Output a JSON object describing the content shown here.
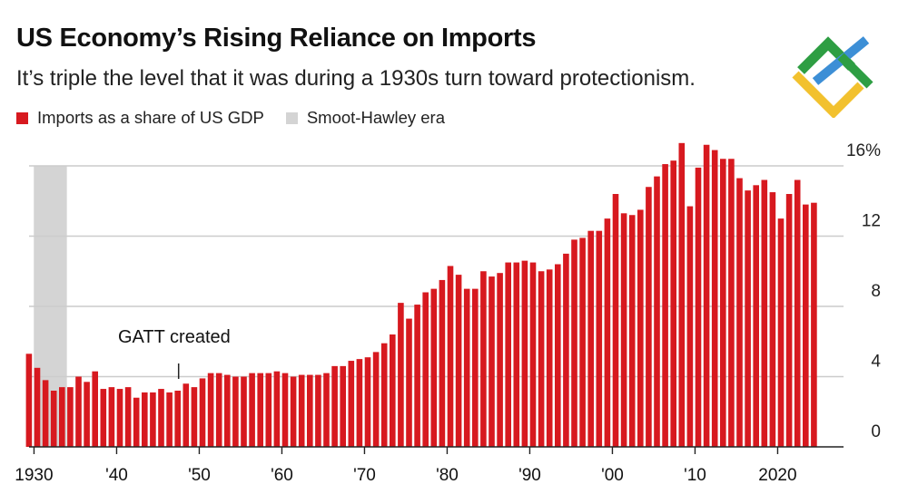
{
  "header": {
    "title": "US Economy’s Rising Reliance on Imports",
    "subtitle": "It’s triple the level that it was during a 1930s turn toward protectionism."
  },
  "legend": [
    {
      "label": "Imports as a share of US GDP",
      "color": "#d7191f"
    },
    {
      "label": "Smoot-Hawley era",
      "color": "#d4d4d4"
    }
  ],
  "colors": {
    "bar": "#d7191f",
    "shade": "#d4d4d4",
    "grid": "#cccccc",
    "axis": "#222222"
  },
  "logo": {
    "name": "brand-logo-icon"
  },
  "chart_data": {
    "type": "bar",
    "title": "US Economy’s Rising Reliance on Imports",
    "ylabel": "Imports as a share of US GDP (%)",
    "ylim": [
      0,
      16
    ],
    "yticks": [
      {
        "value": 0,
        "label": "0"
      },
      {
        "value": 4,
        "label": "4"
      },
      {
        "value": 8,
        "label": "8"
      },
      {
        "value": 12,
        "label": "12"
      },
      {
        "value": 16,
        "label": "16%"
      }
    ],
    "xticks": [
      {
        "year": 1930,
        "label": "1930"
      },
      {
        "year": 1940,
        "label": "'40"
      },
      {
        "year": 1950,
        "label": "'50"
      },
      {
        "year": 1960,
        "label": "'60"
      },
      {
        "year": 1970,
        "label": "'70"
      },
      {
        "year": 1980,
        "label": "'80"
      },
      {
        "year": 1990,
        "label": "'90"
      },
      {
        "year": 2000,
        "label": "'00"
      },
      {
        "year": 2010,
        "label": "'10"
      },
      {
        "year": 2020,
        "label": "2020"
      }
    ],
    "shaded_region": {
      "label": "Smoot-Hawley era",
      "start": 1930,
      "end": 1934
    },
    "annotations": [
      {
        "text": "GATT created",
        "year": 1947
      }
    ],
    "years": [
      1929,
      1930,
      1931,
      1932,
      1933,
      1934,
      1935,
      1936,
      1937,
      1938,
      1939,
      1940,
      1941,
      1942,
      1943,
      1944,
      1945,
      1946,
      1947,
      1948,
      1949,
      1950,
      1951,
      1952,
      1953,
      1954,
      1955,
      1956,
      1957,
      1958,
      1959,
      1960,
      1961,
      1962,
      1963,
      1964,
      1965,
      1966,
      1967,
      1968,
      1969,
      1970,
      1971,
      1972,
      1973,
      1974,
      1975,
      1976,
      1977,
      1978,
      1979,
      1980,
      1981,
      1982,
      1983,
      1984,
      1985,
      1986,
      1987,
      1988,
      1989,
      1990,
      1991,
      1992,
      1993,
      1994,
      1995,
      1996,
      1997,
      1998,
      1999,
      2000,
      2001,
      2002,
      2003,
      2004,
      2005,
      2006,
      2007,
      2008,
      2009,
      2010,
      2011,
      2012,
      2013,
      2014,
      2015,
      2016,
      2017,
      2018,
      2019,
      2020,
      2021,
      2022,
      2023,
      2024
    ],
    "values": [
      5.3,
      4.5,
      3.8,
      3.2,
      3.4,
      3.4,
      4.0,
      3.7,
      4.3,
      3.3,
      3.4,
      3.3,
      3.4,
      2.8,
      3.1,
      3.1,
      3.3,
      3.1,
      3.2,
      3.6,
      3.4,
      3.9,
      4.2,
      4.2,
      4.1,
      4.0,
      4.0,
      4.2,
      4.2,
      4.2,
      4.3,
      4.2,
      4.0,
      4.1,
      4.1,
      4.1,
      4.2,
      4.6,
      4.6,
      4.9,
      5.0,
      5.1,
      5.4,
      5.9,
      6.4,
      8.2,
      7.3,
      8.1,
      8.8,
      9.0,
      9.5,
      10.3,
      9.8,
      9.0,
      9.0,
      10.0,
      9.7,
      9.9,
      10.5,
      10.5,
      10.6,
      10.5,
      10.0,
      10.1,
      10.4,
      11.0,
      11.8,
      11.9,
      12.3,
      12.3,
      13.0,
      14.4,
      13.3,
      13.2,
      13.5,
      14.8,
      15.4,
      16.1,
      16.3,
      17.3,
      13.7,
      15.9,
      17.2,
      16.9,
      16.4,
      16.4,
      15.3,
      14.6,
      14.9,
      15.2,
      14.5,
      13.0,
      14.4,
      15.2,
      13.8,
      13.9
    ]
  }
}
